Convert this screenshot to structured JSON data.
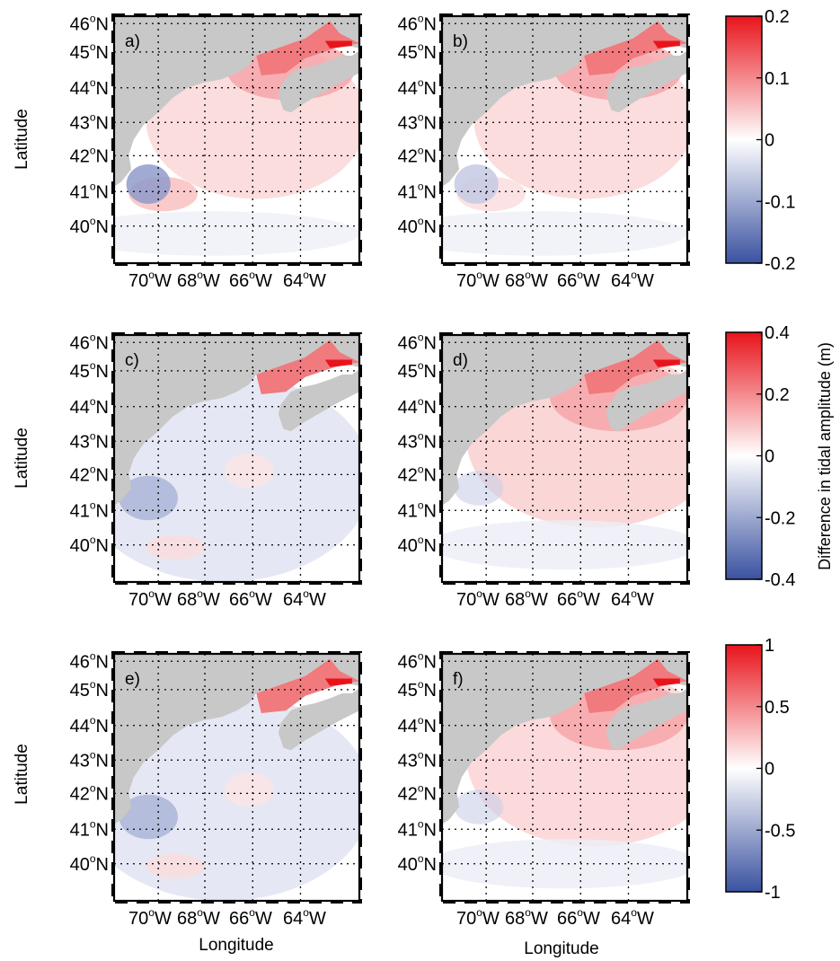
{
  "figure": {
    "ylabel": "Latitude",
    "xlabel": "Longitude",
    "colorbar_label": "Difference in tidal amplitude (m)",
    "lat_ticks": [
      "46",
      "45",
      "44",
      "43",
      "42",
      "41",
      "40"
    ],
    "lon_ticks": [
      "70",
      "68",
      "66",
      "64"
    ],
    "lat_suffix": "N",
    "lon_suffix": "W",
    "degree_symbol": "o",
    "colors": {
      "land": "#c8c8c8",
      "neg": "#3a52a0",
      "zero": "#ffffff",
      "pos": "#e8141c",
      "grid": "#000000"
    }
  },
  "panels": [
    {
      "label": "a)",
      "pattern": "mixed",
      "strength": 0.55
    },
    {
      "label": "b)",
      "pattern": "mixed_weak",
      "strength": 0.45
    },
    {
      "label": "c)",
      "pattern": "negative",
      "strength": 0.35
    },
    {
      "label": "d)",
      "pattern": "positive",
      "strength": 0.5
    },
    {
      "label": "e)",
      "pattern": "negative",
      "strength": 0.4
    },
    {
      "label": "f)",
      "pattern": "positive",
      "strength": 0.45
    }
  ],
  "colorbars": [
    {
      "ticks": [
        "0.2",
        "0.1",
        "0",
        "-0.1",
        "-0.2"
      ],
      "values": [
        0.2,
        0.1,
        0,
        -0.1,
        -0.2
      ],
      "range": [
        -0.2,
        0.2
      ]
    },
    {
      "ticks": [
        "0.4",
        "0.2",
        "0",
        "-0.2",
        "-0.4"
      ],
      "values": [
        0.4,
        0.2,
        0,
        -0.2,
        -0.4
      ],
      "range": [
        -0.4,
        0.4
      ]
    },
    {
      "ticks": [
        "1",
        "0.5",
        "0",
        "-0.5",
        "-1"
      ],
      "values": [
        1,
        0.5,
        0,
        -0.5,
        -1
      ],
      "range": [
        -1,
        1
      ]
    }
  ]
}
